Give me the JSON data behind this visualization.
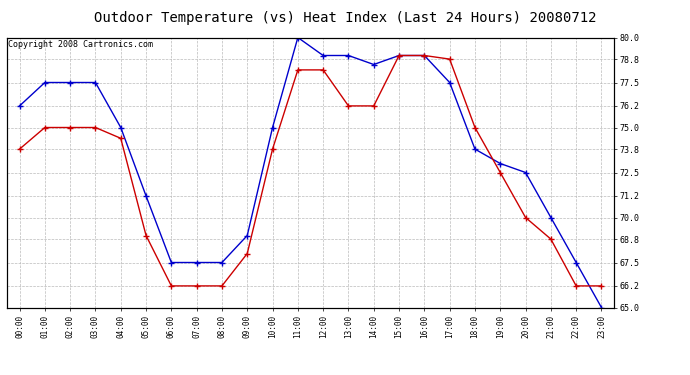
{
  "title": "Outdoor Temperature (vs) Heat Index (Last 24 Hours) 20080712",
  "copyright": "Copyright 2008 Cartronics.com",
  "x_labels": [
    "00:00",
    "01:00",
    "02:00",
    "03:00",
    "04:00",
    "05:00",
    "06:00",
    "07:00",
    "08:00",
    "09:00",
    "10:00",
    "11:00",
    "12:00",
    "13:00",
    "14:00",
    "15:00",
    "16:00",
    "17:00",
    "18:00",
    "19:00",
    "20:00",
    "21:00",
    "22:00",
    "23:00"
  ],
  "blue_temp": [
    76.2,
    77.5,
    77.5,
    77.5,
    75.0,
    71.2,
    67.5,
    67.5,
    67.5,
    69.0,
    75.0,
    80.0,
    79.0,
    79.0,
    78.5,
    79.0,
    79.0,
    77.5,
    73.8,
    73.0,
    72.5,
    70.0,
    67.5,
    65.0
  ],
  "red_heat": [
    73.8,
    75.0,
    75.0,
    75.0,
    74.4,
    69.0,
    66.2,
    66.2,
    66.2,
    68.0,
    73.8,
    78.2,
    78.2,
    76.2,
    76.2,
    79.0,
    79.0,
    78.8,
    75.0,
    72.5,
    70.0,
    68.8,
    66.2,
    66.2
  ],
  "ylim": [
    65.0,
    80.0
  ],
  "yticks": [
    65.0,
    66.2,
    67.5,
    68.8,
    70.0,
    71.2,
    72.5,
    73.8,
    75.0,
    76.2,
    77.5,
    78.8,
    80.0
  ],
  "blue_color": "#0000cc",
  "red_color": "#cc0000",
  "bg_color": "#ffffff",
  "plot_bg": "#ffffff",
  "grid_color": "#bbbbbb",
  "title_color": "#000000",
  "title_fontsize": 10,
  "copyright_fontsize": 6
}
